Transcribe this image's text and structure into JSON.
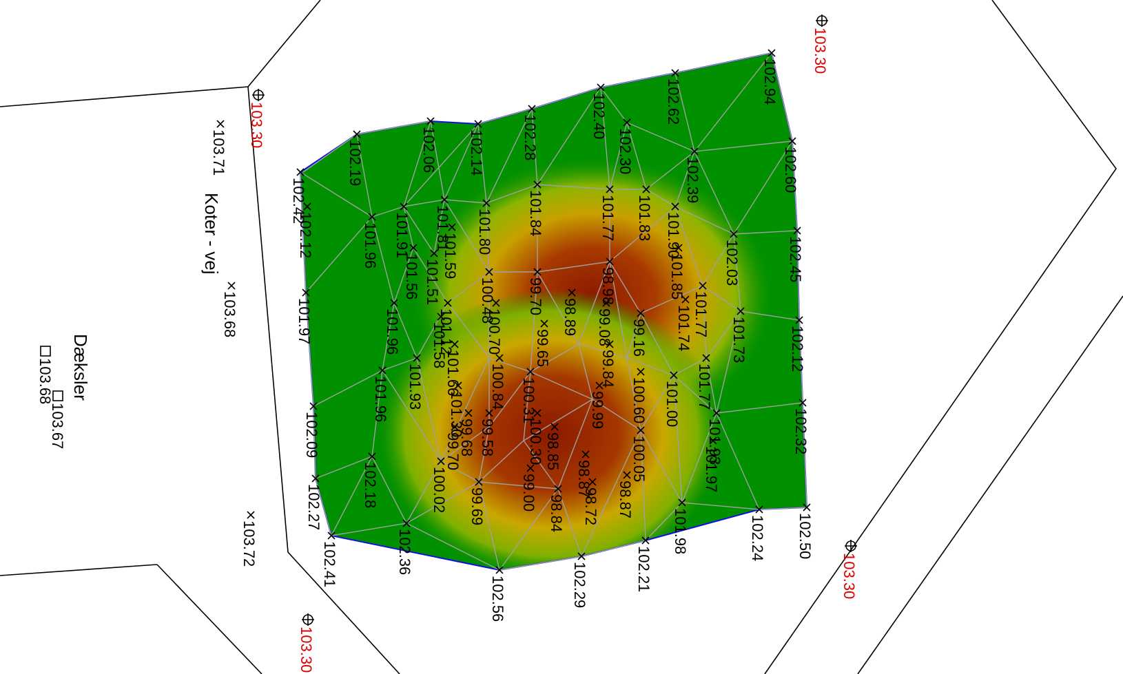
{
  "legend": {
    "title": "Koter - vej",
    "covers_title": "Dæksler"
  },
  "fixed_levels": [
    "103.30",
    "103.30",
    "103.30",
    "103.30"
  ],
  "road_spots": [
    "103.71",
    "103.68",
    "103.72"
  ],
  "covers": [
    "103.68",
    "103.67"
  ],
  "boundary_points": [
    "102.94",
    "102.62",
    "102.40",
    "102.28",
    "102.14",
    "102.06",
    "102.19",
    "102.42",
    "102.12",
    "101.97",
    "102.09",
    "102.27",
    "102.41",
    "102.36",
    "102.56",
    "102.29",
    "102.21",
    "101.98",
    "102.24",
    "102.50",
    "102.32",
    "102.12",
    "102.45",
    "102.60"
  ],
  "interior_points": [
    "102.30",
    "102.39",
    "101.83",
    "101.77",
    "101.84",
    "101.80",
    "101.81",
    "101.91",
    "101.96",
    "101.56",
    "101.59",
    "101.51",
    "100.48",
    "99.70",
    "98.98",
    "99.08",
    "99.16",
    "101.90",
    "101.85",
    "101.77",
    "101.74",
    "102.03",
    "101.73",
    "101.96",
    "101.93",
    "101.12",
    "101.58",
    "101.66",
    "101.30",
    "100.70",
    "100.84",
    "100.31",
    "99.65",
    "98.89",
    "99.84",
    "99.99",
    "100.60",
    "101.00",
    "101.77",
    "101.93",
    "101.97",
    "101.96",
    "102.18",
    "100.02",
    "99.68",
    "99.70",
    "99.58",
    "99.69",
    "98.85",
    "98.87",
    "98.72",
    "98.84",
    "99.00",
    "100.05",
    "98.87",
    "100.30"
  ]
}
